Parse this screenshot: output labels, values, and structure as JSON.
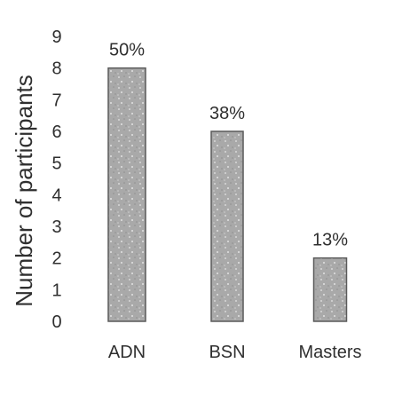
{
  "chart_data": {
    "type": "bar",
    "categories": [
      "ADN",
      "BSN",
      "Masters"
    ],
    "values": [
      8,
      6,
      2
    ],
    "data_labels": [
      "50%",
      "38%",
      "13%"
    ],
    "ylabel": "Number of participants",
    "xlabel": "",
    "yticks": [
      "0",
      "1",
      "2",
      "3",
      "4",
      "5",
      "6",
      "7",
      "8",
      "9"
    ],
    "ylim": [
      0,
      9
    ],
    "grid": false,
    "legend": "none",
    "bar_color": "#a8a8a8",
    "bar_edge_color": "#5a5a5a"
  }
}
